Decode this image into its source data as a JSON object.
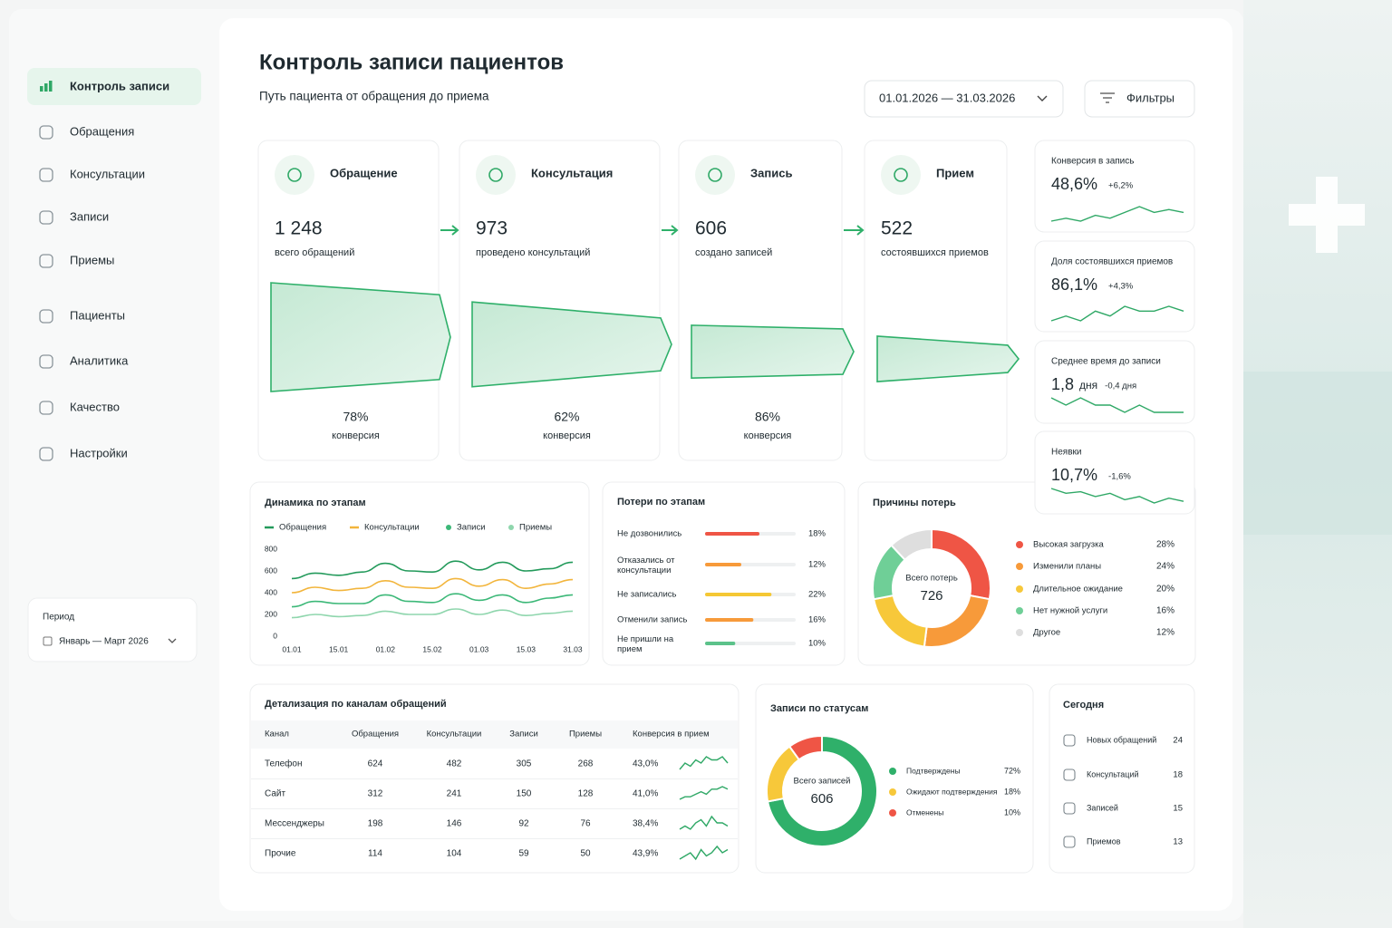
{
  "sidebar": {
    "nav": [
      "Контроль записи",
      "Обращения",
      "Консультации",
      "Записи",
      "Приемы",
      "Пациенты",
      "Аналитика",
      "Качество",
      "Настройки"
    ],
    "active": 0,
    "period_label": "Период",
    "period_value": "Январь — Март 2026"
  },
  "header": {
    "title": "Контроль записи пациентов",
    "subtitle": "Путь пациента от обращения до приема",
    "date_range": "01.01.2026 — 31.03.2026",
    "filters": "Фильтры"
  },
  "funnel": {
    "color": "#2fb06a",
    "stages": [
      {
        "name": "Обращение",
        "value": 1248,
        "value_label": "1 248",
        "caption": "всего обращений"
      },
      {
        "name": "Консультация",
        "value": 973,
        "value_label": "973",
        "caption": "проведено консультаций"
      },
      {
        "name": "Запись",
        "value": 606,
        "value_label": "606",
        "caption": "создано записей"
      },
      {
        "name": "Прием",
        "value": 522,
        "value_label": "522",
        "caption": "состоявшихся приемов"
      }
    ],
    "conversions": [
      "78%",
      "62%",
      "86%"
    ],
    "conversion_caption": "конверсия"
  },
  "kpis": [
    {
      "title": "Конверсия в запись",
      "value": "48,6%",
      "delta": "+6,2%",
      "trend": [
        44,
        45,
        44,
        46,
        45,
        47,
        49,
        47,
        48,
        47
      ]
    },
    {
      "title": "Доля состоявшихся приемов",
      "value": "86,1%",
      "delta": "+4,3%",
      "trend": [
        84,
        85,
        84,
        86,
        85,
        87,
        86,
        86,
        87,
        86
      ]
    },
    {
      "title": "Среднее время до записи",
      "value": "1,8",
      "unit": "дня",
      "delta": "-0,4 дня",
      "trend": [
        2.0,
        1.9,
        2.0,
        1.9,
        1.9,
        1.8,
        1.9,
        1.8,
        1.8,
        1.8
      ]
    },
    {
      "title": "Неявки",
      "value": "10,7%",
      "delta": "-1,6%",
      "trend": [
        11.5,
        11.2,
        11.3,
        11.0,
        11.2,
        10.8,
        11.0,
        10.6,
        10.9,
        10.7
      ]
    }
  ],
  "dynamics": {
    "type": "line",
    "title": "Динамика по этапам",
    "categories": [
      "01.01",
      null,
      "15.01",
      null,
      "01.02",
      null,
      "15.02",
      null,
      "01.03",
      null,
      "15.03",
      null,
      "31.03"
    ],
    "series": [
      {
        "name": "Обращения",
        "color": "#239a5b",
        "values": [
          530,
          580,
          560,
          590,
          670,
          600,
          590,
          690,
          610,
          680,
          600,
          620,
          680
        ]
      },
      {
        "name": "Консультации",
        "color": "#f2b53c",
        "values": [
          400,
          450,
          420,
          440,
          510,
          450,
          440,
          530,
          460,
          520,
          440,
          480,
          520
        ]
      },
      {
        "name": "Записи",
        "color": "#3cb878",
        "values": [
          270,
          320,
          300,
          300,
          380,
          320,
          310,
          390,
          330,
          380,
          310,
          350,
          380
        ]
      },
      {
        "name": "Приемы",
        "color": "#8fd6ad",
        "values": [
          170,
          200,
          180,
          190,
          230,
          200,
          200,
          250,
          200,
          240,
          190,
          210,
          230
        ]
      }
    ],
    "ylim": [
      0,
      800
    ],
    "yticks": [
      0,
      200,
      400,
      600,
      800
    ],
    "grid": false
  },
  "losses": {
    "type": "bar",
    "title": "Потери по этапам",
    "categories": [
      "Не дозвонились",
      "Отказались от консультации",
      "Не записались",
      "Отменили запись",
      "Не пришли на прием"
    ],
    "values": [
      18,
      12,
      22,
      16,
      10
    ],
    "value_labels": [
      "18%",
      "12%",
      "22%",
      "16%",
      "10%"
    ],
    "colors": [
      "#ef5545",
      "#f79a3a",
      "#f5c834",
      "#f79a3a",
      "#5cc28a"
    ],
    "xlim": [
      0,
      30
    ]
  },
  "reasons": {
    "type": "pie",
    "title": "Причины потерь",
    "center_label": "Всего потерь",
    "center_value": 726,
    "categories": [
      "Высокая загрузка",
      "Изменили планы",
      "Длительное ожидание",
      "Нет нужной услуги",
      "Другое"
    ],
    "values": [
      28,
      24,
      20,
      16,
      12
    ],
    "value_labels": [
      "28%",
      "24%",
      "20%",
      "16%",
      "12%"
    ],
    "colors": [
      "#ef5545",
      "#f79a3a",
      "#f7c83a",
      "#6fcf97",
      "#dedede"
    ]
  },
  "channels": {
    "title": "Детализация по каналам обращений",
    "columns": [
      "Канал",
      "Обращения",
      "Консультации",
      "Записи",
      "Приемы",
      "Конверсия в прием"
    ],
    "rows": [
      [
        "Телефон",
        624,
        482,
        305,
        268,
        "43,0%"
      ],
      [
        "Сайт",
        312,
        241,
        150,
        128,
        "41,0%"
      ],
      [
        "Мессенджеры",
        198,
        146,
        92,
        76,
        "38,4%"
      ],
      [
        "Прочие",
        114,
        104,
        59,
        50,
        "43,9%"
      ]
    ],
    "trends": [
      [
        3,
        5,
        4,
        6,
        5,
        7,
        6,
        6,
        7,
        5
      ],
      [
        2,
        3,
        3,
        4,
        5,
        4,
        6,
        6,
        7,
        6
      ],
      [
        3,
        4,
        3,
        5,
        6,
        4,
        7,
        5,
        5,
        4
      ],
      [
        3,
        4,
        5,
        3,
        6,
        4,
        5,
        7,
        5,
        6
      ]
    ],
    "trend_color": "#2fa866"
  },
  "statuses": {
    "type": "pie",
    "title": "Записи по статусам",
    "center_label": "Всего записей",
    "center_value": 606,
    "categories": [
      "Подтверждены",
      "Ожидают подтверждения",
      "Отменены"
    ],
    "values": [
      72,
      18,
      10
    ],
    "value_labels": [
      "72%",
      "18%",
      "10%"
    ],
    "colors": [
      "#2fb06a",
      "#f7c83a",
      "#ef5545"
    ]
  },
  "today": {
    "title": "Сегодня",
    "items": [
      {
        "label": "Новых обращений",
        "value": 24
      },
      {
        "label": "Консультаций",
        "value": 18
      },
      {
        "label": "Записей",
        "value": 15
      },
      {
        "label": "Приемов",
        "value": 13
      }
    ]
  }
}
